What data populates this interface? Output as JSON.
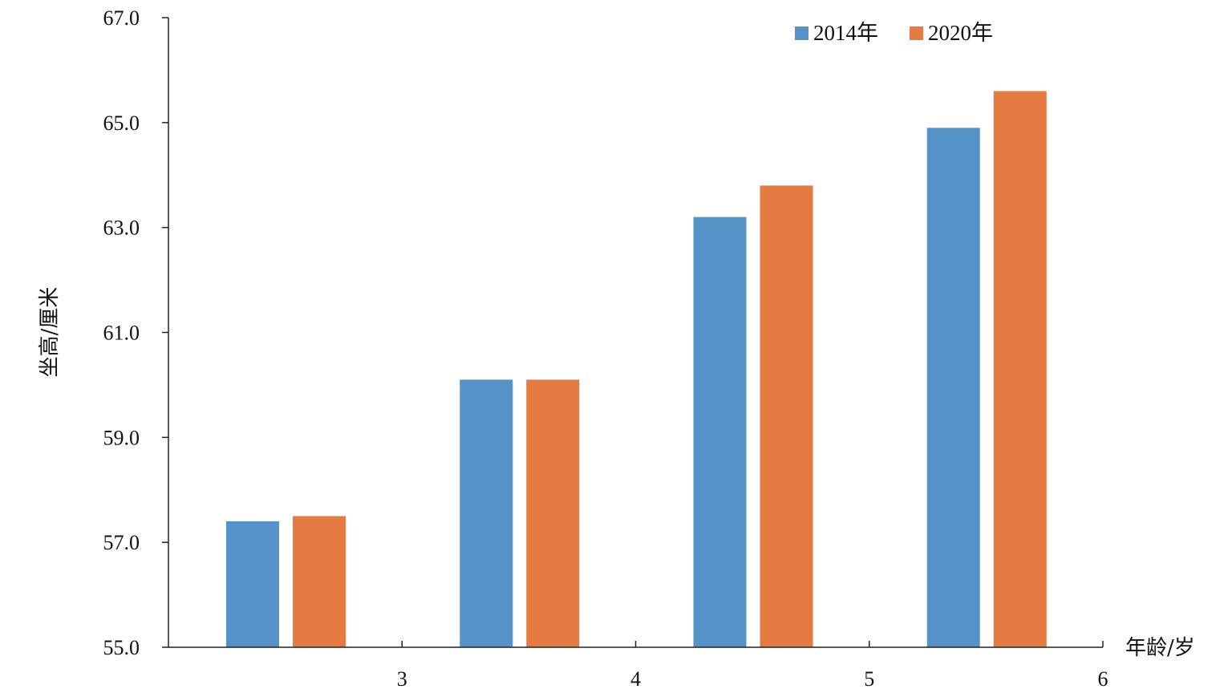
{
  "chart_data": {
    "type": "bar",
    "title": "",
    "xlabel": "年龄/岁",
    "ylabel": "坐高/厘米",
    "ylim": [
      55.0,
      67.0
    ],
    "y_ticks": [
      "55.0",
      "57.0",
      "59.0",
      "61.0",
      "63.0",
      "65.0",
      "67.0"
    ],
    "x_ticks": [
      "3",
      "4",
      "5",
      "6"
    ],
    "categories": [
      "3",
      "4",
      "5",
      "6"
    ],
    "series": [
      {
        "name": "2014年",
        "color": "#5592c8",
        "values": [
          57.4,
          60.1,
          63.2,
          64.9
        ]
      },
      {
        "name": "2020年",
        "color": "#e57a42",
        "values": [
          57.5,
          60.1,
          63.8,
          65.6
        ]
      }
    ],
    "grid": false,
    "legend_position": "top-right"
  }
}
